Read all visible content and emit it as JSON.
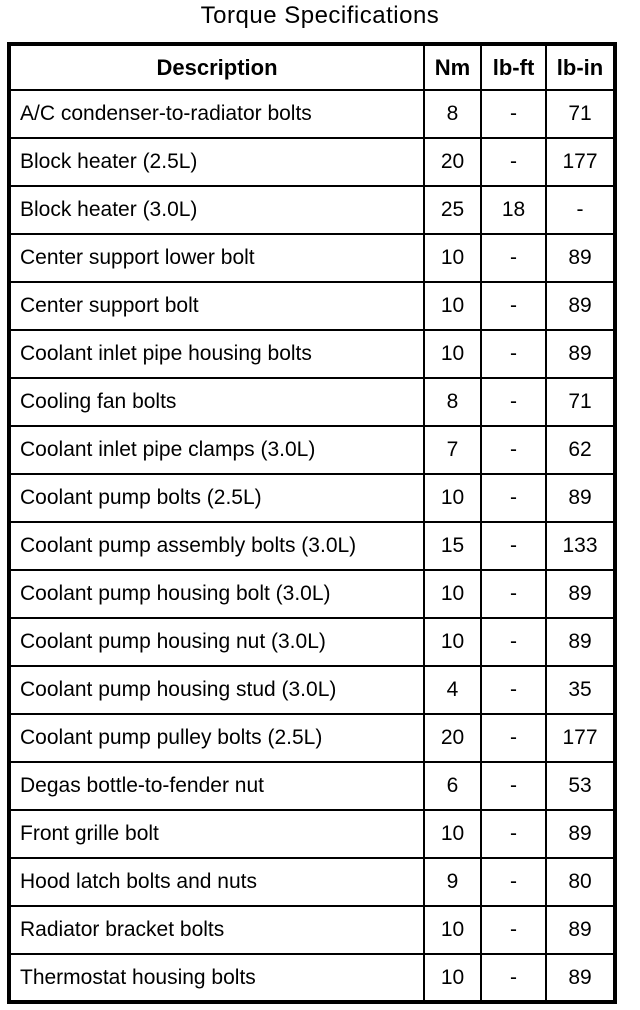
{
  "title": "Torque Specifications",
  "colors": {
    "background": "#ffffff",
    "border": "#000000",
    "text": "#000000"
  },
  "table": {
    "headers": [
      "Description",
      "Nm",
      "lb-ft",
      "lb-in"
    ],
    "rows": [
      {
        "description": "A/C condenser-to-radiator bolts",
        "nm": "8",
        "lb_ft": "-",
        "lb_in": "71"
      },
      {
        "description": "Block heater (2.5L)",
        "nm": "20",
        "lb_ft": "-",
        "lb_in": "177"
      },
      {
        "description": "Block heater (3.0L)",
        "nm": "25",
        "lb_ft": "18",
        "lb_in": "-"
      },
      {
        "description": "Center support lower bolt",
        "nm": "10",
        "lb_ft": "-",
        "lb_in": "89"
      },
      {
        "description": "Center support bolt",
        "nm": "10",
        "lb_ft": "-",
        "lb_in": "89"
      },
      {
        "description": "Coolant inlet pipe housing bolts",
        "nm": "10",
        "lb_ft": "-",
        "lb_in": "89"
      },
      {
        "description": "Cooling fan bolts",
        "nm": "8",
        "lb_ft": "-",
        "lb_in": "71"
      },
      {
        "description": "Coolant inlet pipe clamps (3.0L)",
        "nm": "7",
        "lb_ft": "-",
        "lb_in": "62"
      },
      {
        "description": "Coolant pump bolts (2.5L)",
        "nm": "10",
        "lb_ft": "-",
        "lb_in": "89"
      },
      {
        "description": "Coolant pump assembly bolts (3.0L)",
        "nm": "15",
        "lb_ft": "-",
        "lb_in": "133"
      },
      {
        "description": "Coolant pump housing bolt (3.0L)",
        "nm": "10",
        "lb_ft": "-",
        "lb_in": "89"
      },
      {
        "description": "Coolant pump housing nut (3.0L)",
        "nm": "10",
        "lb_ft": "-",
        "lb_in": "89"
      },
      {
        "description": "Coolant pump housing stud (3.0L)",
        "nm": "4",
        "lb_ft": "-",
        "lb_in": "35"
      },
      {
        "description": "Coolant pump pulley bolts (2.5L)",
        "nm": "20",
        "lb_ft": "-",
        "lb_in": "177"
      },
      {
        "description": "Degas bottle-to-fender nut",
        "nm": "6",
        "lb_ft": "-",
        "lb_in": "53"
      },
      {
        "description": "Front grille bolt",
        "nm": "10",
        "lb_ft": "-",
        "lb_in": "89"
      },
      {
        "description": "Hood latch bolts and nuts",
        "nm": "9",
        "lb_ft": "-",
        "lb_in": "80"
      },
      {
        "description": "Radiator bracket bolts",
        "nm": "10",
        "lb_ft": "-",
        "lb_in": "89"
      },
      {
        "description": "Thermostat housing bolts",
        "nm": "10",
        "lb_ft": "-",
        "lb_in": "89"
      }
    ]
  }
}
